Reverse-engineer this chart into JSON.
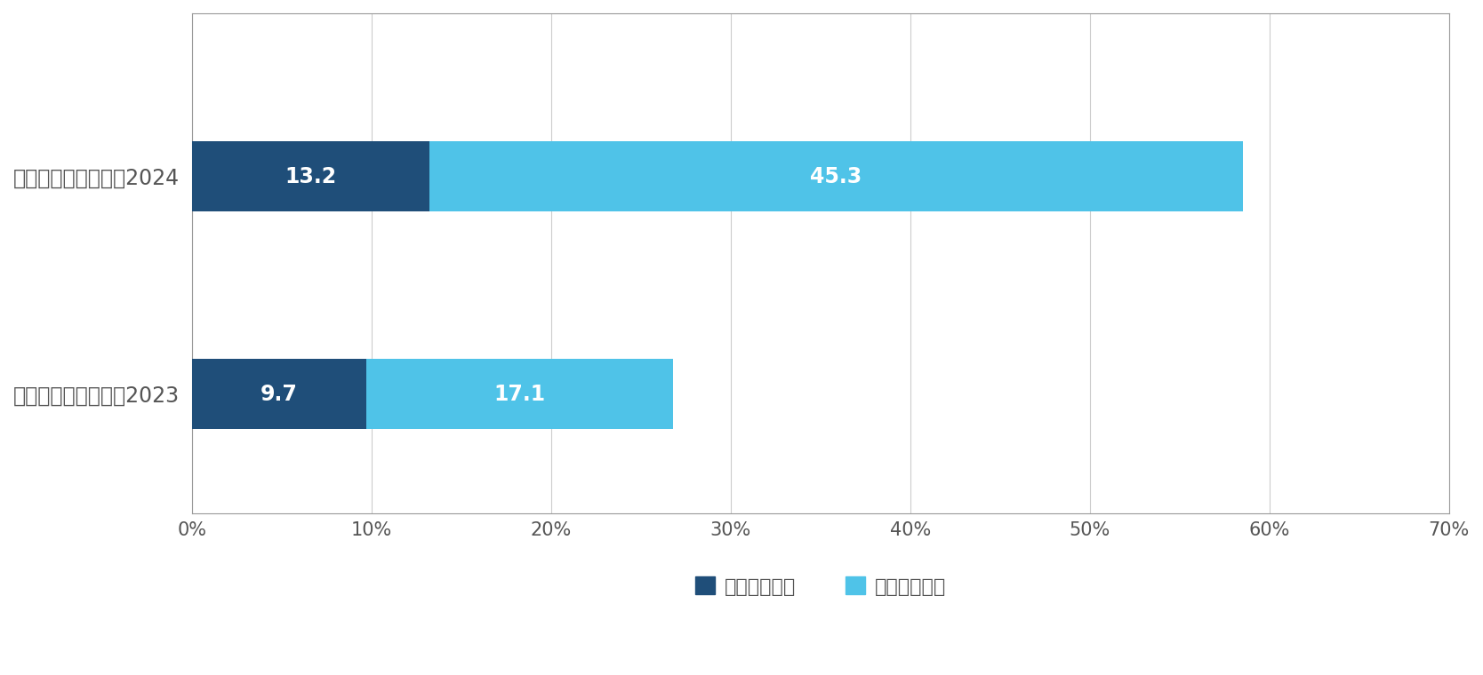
{
  "categories": [
    "ブランド・ジャパン2024",
    "ブランド・ジャパン2023"
  ],
  "values_dark": [
    13.2,
    9.7
  ],
  "values_light": [
    45.3,
    17.1
  ],
  "color_dark": "#1f4e79",
  "color_light": "#4fc3e8",
  "xlim": [
    0,
    70
  ],
  "xticks": [
    0,
    10,
    20,
    30,
    40,
    50,
    60,
    70
  ],
  "xtick_labels": [
    "0%",
    "10%",
    "20%",
    "30%",
    "40%",
    "50%",
    "60%",
    "70%"
  ],
  "legend_labels": [
    "よく見かける",
    "時々見かける"
  ],
  "bar_height": 0.32,
  "text_color_on_bar": "#ffffff",
  "text_fontsize": 17,
  "tick_fontsize": 15,
  "label_fontsize": 17,
  "legend_fontsize": 16,
  "background_color": "#ffffff",
  "border_color": "#999999",
  "grid_color": "#cccccc",
  "text_color": "#555555"
}
